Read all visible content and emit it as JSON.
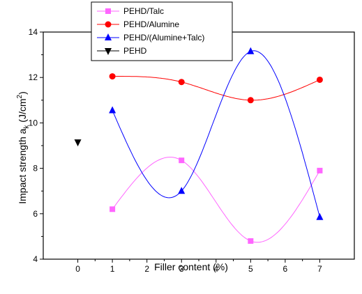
{
  "chart_data": {
    "type": "line",
    "xlabel": "Filler content (%)",
    "ylabel_main": "Impact strength a",
    "ylabel_sub": "k",
    "ylabel_unit_open": " (J/cm",
    "ylabel_unit_sup": "2",
    "ylabel_unit_close": ")",
    "xlim": [
      -1,
      8
    ],
    "ylim": [
      4,
      14
    ],
    "x_ticks": [
      0,
      1,
      2,
      3,
      4,
      5,
      6,
      7
    ],
    "y_ticks": [
      4,
      6,
      8,
      10,
      12,
      14
    ],
    "grid": false,
    "legend_position": "top-center",
    "series": [
      {
        "name": "PEHD/Talc",
        "color": "#ff66ff",
        "marker": "square",
        "x": [
          1,
          3,
          5,
          7
        ],
        "values": [
          6.2,
          8.35,
          4.8,
          7.9
        ]
      },
      {
        "name": "PEHD/Alumine",
        "color": "#ff0000",
        "marker": "circle",
        "x": [
          1,
          3,
          5,
          7
        ],
        "values": [
          12.05,
          11.8,
          11.0,
          11.9
        ]
      },
      {
        "name": "PEHD/(Alumine+Talc)",
        "color": "#0000ff",
        "marker": "triangle-up",
        "x": [
          1,
          3,
          5,
          7
        ],
        "values": [
          10.55,
          7.0,
          13.15,
          5.85
        ]
      },
      {
        "name": "PEHD",
        "color": "#000000",
        "marker": "triangle-down",
        "x": [
          0
        ],
        "values": [
          9.15
        ]
      }
    ]
  }
}
